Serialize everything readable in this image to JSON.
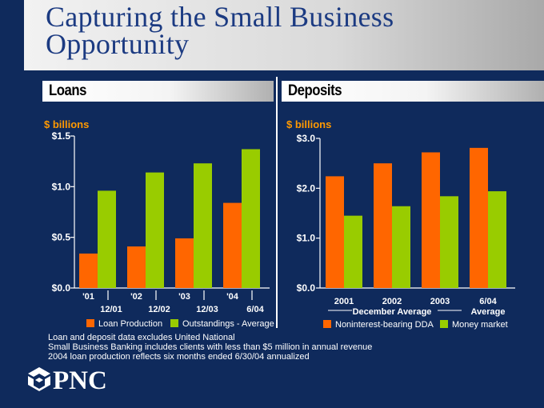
{
  "title": [
    "Capturing the Small Business",
    "Opportunity"
  ],
  "colors": {
    "orange": "#ff6600",
    "green": "#99cc00",
    "background": "#0f2a5c",
    "title_text": "#1c3b82",
    "unit": "#ff9900"
  },
  "chart_data": [
    {
      "type": "bar",
      "title": "Loans",
      "ylabel": "$ billions",
      "ylim": [
        0,
        1.5
      ],
      "yticks": [
        "$0.0",
        "$0.5",
        "$1.0",
        "$1.5"
      ],
      "categories": [
        "'01",
        "'02",
        "'03",
        "'04"
      ],
      "secondary_labels": [
        "12/01",
        "12/02",
        "12/03",
        "6/04"
      ],
      "series": [
        {
          "name": "Loan Production",
          "color": "#ff6600",
          "values": [
            0.34,
            0.41,
            0.49,
            0.84
          ]
        },
        {
          "name": "Outstandings - Average",
          "color": "#99cc00",
          "values": [
            0.96,
            1.14,
            1.23,
            1.37
          ]
        }
      ],
      "legend": "bottom"
    },
    {
      "type": "bar",
      "title": "Deposits",
      "ylabel": "$ billions",
      "ylim": [
        0,
        3.0
      ],
      "yticks": [
        "$0.0",
        "$1.0",
        "$2.0",
        "$3.0"
      ],
      "categories": [
        "2001",
        "2002",
        "2003",
        "6/04"
      ],
      "group_labels": [
        "December Average",
        "Average"
      ],
      "series": [
        {
          "name": "Noninterest-bearing DDA",
          "color": "#ff6600",
          "values": [
            2.24,
            2.5,
            2.72,
            2.81
          ]
        },
        {
          "name": "Money market",
          "color": "#99cc00",
          "values": [
            1.45,
            1.64,
            1.84,
            1.94
          ]
        }
      ],
      "legend": "bottom"
    }
  ],
  "footnotes": [
    "Loan and deposit data excludes United National",
    "Small Business Banking includes clients with less than $5 million in annual revenue",
    "2004 loan production reflects six months ended 6/30/04 annualized"
  ],
  "logo": {
    "text": "PNC",
    "icon": "pnc-logo-icon"
  }
}
